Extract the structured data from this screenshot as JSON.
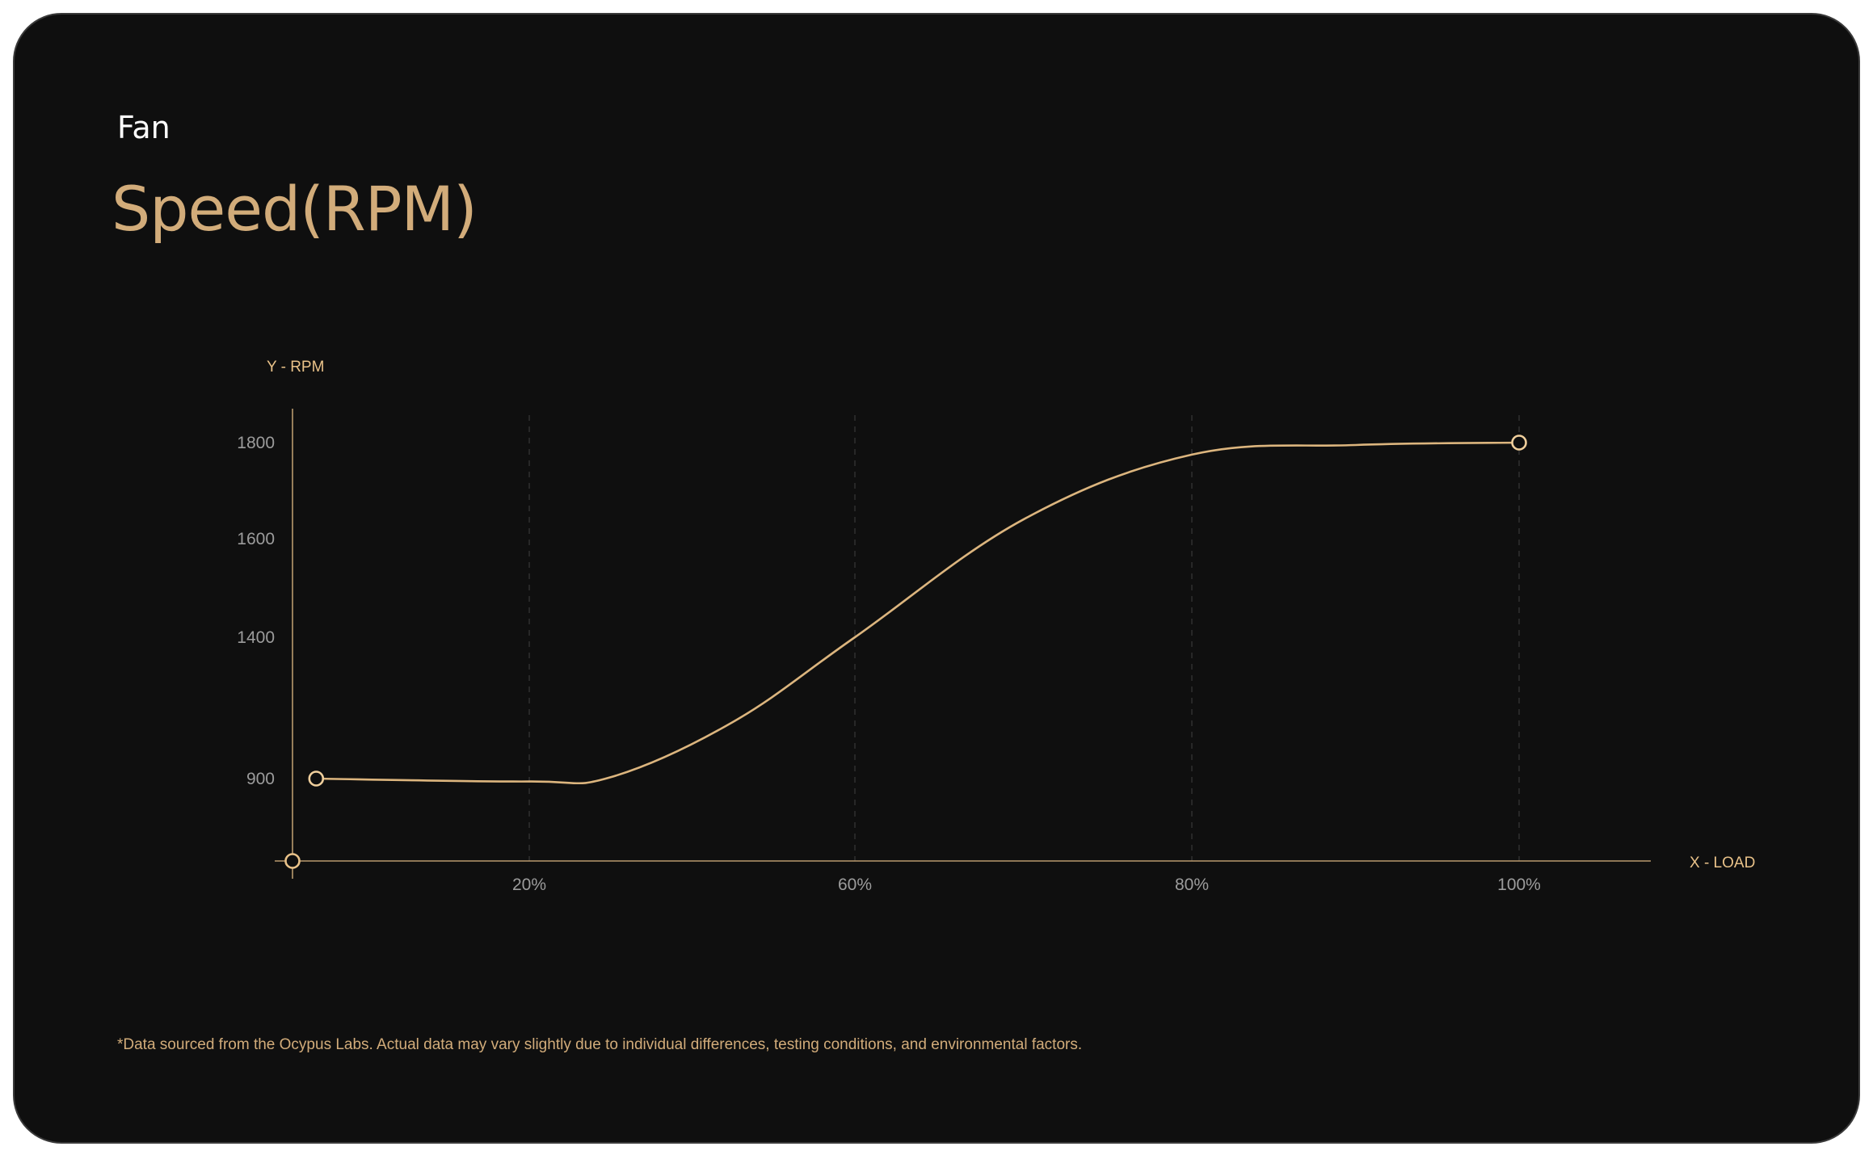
{
  "header": {
    "subtitle": "Fan",
    "title": "Speed(RPM)"
  },
  "footnote": "*Data sourced from the Ocypus Labs. Actual data may vary slightly due to individual differences, testing conditions, and environmental factors.",
  "colors": {
    "background": "#0f0f0f",
    "accent": "#d2ac7a",
    "curve": "#dcb57e",
    "grid": "#2e2e2e",
    "tick_text": "#9c9c9c"
  },
  "chart_data": {
    "type": "line",
    "xlabel": "X - LOAD",
    "ylabel": "Y - RPM",
    "x_ticks": [
      {
        "value": 20,
        "label": "20%"
      },
      {
        "value": 60,
        "label": "60%"
      },
      {
        "value": 80,
        "label": "80%"
      },
      {
        "value": 100,
        "label": "100%"
      }
    ],
    "y_ticks": [
      {
        "value": 900,
        "label": "900"
      },
      {
        "value": 1400,
        "label": "1400"
      },
      {
        "value": 1600,
        "label": "1600"
      },
      {
        "value": 1800,
        "label": "1800"
      }
    ],
    "grid": "vertical-dashed",
    "series": [
      {
        "x": [
          2,
          20,
          30,
          45,
          60,
          70,
          80,
          90,
          100
        ],
        "y": [
          900,
          895,
          905,
          1100,
          1400,
          1640,
          1775,
          1795,
          1800
        ],
        "markers_at": [
          0,
          8
        ]
      }
    ],
    "origin_marker": true
  }
}
